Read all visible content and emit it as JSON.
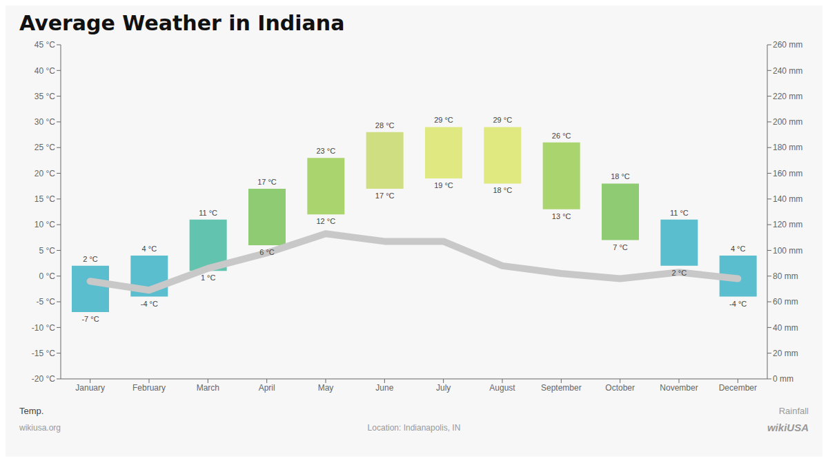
{
  "chart_data": {
    "type": "bar",
    "title": "Average Weather in Indiana",
    "categories": [
      "January",
      "February",
      "March",
      "April",
      "May",
      "June",
      "July",
      "August",
      "September",
      "October",
      "November",
      "December"
    ],
    "ylabel": "Temp.",
    "y2label": "Rainfall",
    "series": [
      {
        "type": "bar",
        "values": [
          2,
          4,
          11,
          17,
          23,
          28,
          29,
          29,
          26,
          18,
          11,
          4
        ],
        "base": [
          -7,
          -4,
          1,
          6,
          12,
          17,
          19,
          18,
          13,
          7,
          2,
          -4
        ],
        "colors": [
          "#5bbecf",
          "#5bbecf",
          "#62c4ae",
          "#8ecb72",
          "#aad46e",
          "#cede80",
          "#e0e882",
          "#e0e880",
          "#aad46e",
          "#8ecb72",
          "#5bbecf",
          "#5bbecf"
        ],
        "data_labels": true,
        "value_labels": [
          "2 °C",
          "4 °C",
          "11 °C",
          "17 °C",
          "23 °C",
          "28 °C",
          "29 °C",
          "29 °C",
          "26 °C",
          "18 °C",
          "11 °C",
          "4 °C"
        ],
        "base_labels": [
          "-7 °C",
          "-4 °C",
          "1 °C",
          "6 °C",
          "12 °C",
          "17 °C",
          "19 °C",
          "18 °C",
          "13 °C",
          "7 °C",
          "2 °C",
          "-4 °C"
        ]
      },
      {
        "type": "line",
        "axis": "y2",
        "color": "#c8c8c8",
        "values": [
          76,
          69,
          86,
          98,
          113,
          107,
          107,
          88,
          82,
          78,
          83,
          78
        ]
      }
    ],
    "ylim": [
      -20,
      45
    ],
    "yticks": [
      {
        "value": -20,
        "label": "-20 °C"
      },
      {
        "value": -15,
        "label": "-15 °C"
      },
      {
        "value": -10,
        "label": "-10 °C"
      },
      {
        "value": -5,
        "label": "-5 °C"
      },
      {
        "value": 0,
        "label": "0 °C"
      },
      {
        "value": 5,
        "label": "5 °C"
      },
      {
        "value": 10,
        "label": "10 °C"
      },
      {
        "value": 15,
        "label": "15 °C"
      },
      {
        "value": 20,
        "label": "20 °C"
      },
      {
        "value": 25,
        "label": "25 °C"
      },
      {
        "value": 30,
        "label": "30 °C"
      },
      {
        "value": 35,
        "label": "35 °C"
      },
      {
        "value": 40,
        "label": "40 °C"
      },
      {
        "value": 45,
        "label": "45 °C"
      }
    ],
    "y2lim": [
      0,
      260
    ],
    "y2ticks": [
      {
        "value": 0,
        "label": "0 mm"
      },
      {
        "value": 20,
        "label": "20 mm"
      },
      {
        "value": 40,
        "label": "40 mm"
      },
      {
        "value": 60,
        "label": "60 mm"
      },
      {
        "value": 80,
        "label": "80 mm"
      },
      {
        "value": 100,
        "label": "100 mm"
      },
      {
        "value": 120,
        "label": "120 mm"
      },
      {
        "value": 140,
        "label": "140 mm"
      },
      {
        "value": 160,
        "label": "160 mm"
      },
      {
        "value": 180,
        "label": "180 mm"
      },
      {
        "value": 200,
        "label": "200 mm"
      },
      {
        "value": 220,
        "label": "220 mm"
      },
      {
        "value": 240,
        "label": "240 mm"
      },
      {
        "value": 260,
        "label": "260 mm"
      }
    ],
    "grid": false,
    "annotations": [
      "wikiusa.org",
      "Location: Indianapolis, IN",
      "wiki",
      "USA"
    ]
  }
}
